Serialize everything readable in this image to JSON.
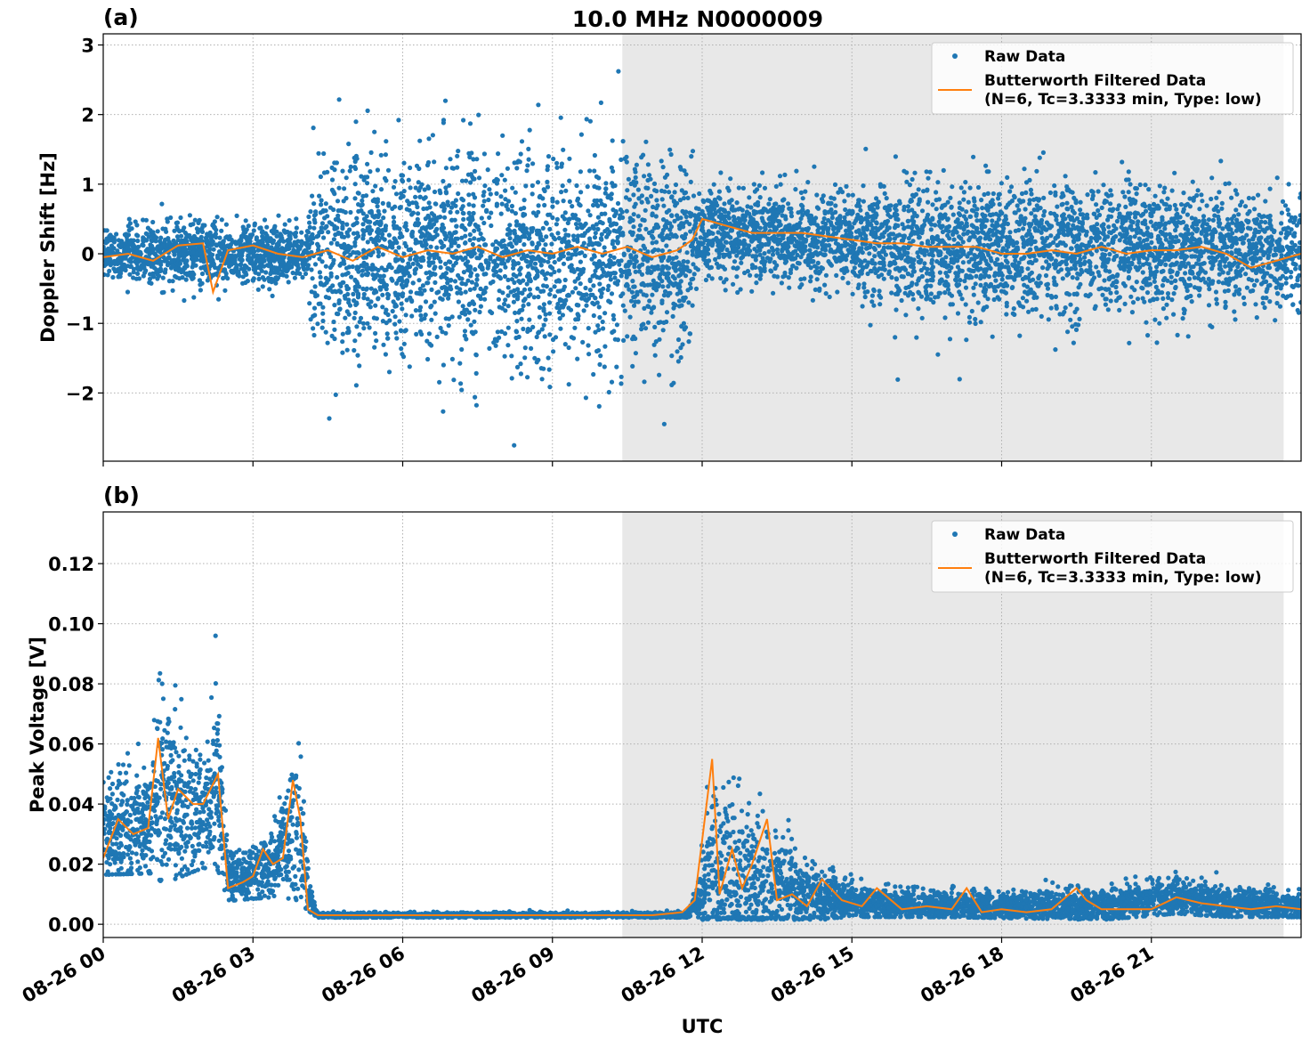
{
  "figure_title": "10.0 MHz N0000009",
  "xlabel": "UTC",
  "colors": {
    "raw": "#1f77b4",
    "filtered": "#ff7f0e",
    "shade": "#e8e8e8",
    "grid": "#b0b0b0"
  },
  "legend": {
    "raw": "Raw Data",
    "filtered_line1": "Butterworth Filtered Data",
    "filtered_line2": "(N=6, Tc=3.3333 min, Type: low)"
  },
  "chart_data": [
    {
      "type": "scatter+line",
      "panel_label": "(a)",
      "ylabel": "Doppler Shift [Hz]",
      "xlim_hours": [
        0,
        24
      ],
      "x_ticks": [
        "08-26 00",
        "08-26 03",
        "08-26 06",
        "08-26 09",
        "08-26 12",
        "08-26 15",
        "08-26 18",
        "08-26 21"
      ],
      "x_tick_hours": [
        0,
        3,
        6,
        9,
        12,
        15,
        18,
        21
      ],
      "ylim": [
        -2.98,
        3.16
      ],
      "y_ticks": [
        -2,
        -1,
        0,
        1,
        2,
        3
      ],
      "y_tick_labels": [
        "−2",
        "−1",
        "0",
        "1",
        "2",
        "3"
      ],
      "grid": true,
      "legend_position": "upper right",
      "shaded_hours": [
        10.4,
        23.65
      ],
      "filtered": {
        "x_hours": [
          0,
          0.5,
          1,
          1.5,
          2,
          2.2,
          2.5,
          3,
          3.5,
          4,
          4.5,
          5,
          5.5,
          6,
          6.5,
          7,
          7.5,
          8,
          8.5,
          9,
          9.5,
          10,
          10.5,
          11,
          11.5,
          11.8,
          12,
          12.5,
          13,
          13.5,
          14,
          14.5,
          15,
          15.5,
          16,
          16.5,
          17,
          17.5,
          18,
          18.5,
          19,
          19.5,
          20,
          20.5,
          21,
          21.5,
          22,
          22.5,
          23,
          23.5,
          24
        ],
        "y": [
          -0.05,
          0.0,
          -0.1,
          0.12,
          0.15,
          -0.55,
          0.05,
          0.12,
          0.0,
          -0.05,
          0.05,
          -0.1,
          0.1,
          -0.05,
          0.05,
          0.0,
          0.1,
          -0.05,
          0.05,
          0.0,
          0.1,
          0.0,
          0.1,
          -0.05,
          0.05,
          0.2,
          0.5,
          0.4,
          0.3,
          0.3,
          0.3,
          0.25,
          0.2,
          0.15,
          0.15,
          0.1,
          0.1,
          0.1,
          0.0,
          0.0,
          0.05,
          0.0,
          0.1,
          0.0,
          0.05,
          0.05,
          0.1,
          0.0,
          -0.2,
          -0.1,
          0.0
        ]
      },
      "raw_envelope": {
        "x_hours": [
          0,
          2,
          4.1,
          4.15,
          8,
          11.8,
          11.85,
          15,
          16,
          20,
          22,
          24
        ],
        "center": [
          0,
          0,
          0,
          0,
          0,
          0,
          0.3,
          0.2,
          0.1,
          0.05,
          0.1,
          0
        ],
        "half_spread": [
          0.35,
          0.4,
          0.35,
          1.25,
          1.3,
          1.25,
          0.55,
          0.6,
          0.85,
          0.85,
          0.7,
          0.7
        ]
      }
    },
    {
      "type": "scatter+line",
      "panel_label": "(b)",
      "ylabel": "Peak Voltage [V]",
      "xlim_hours": [
        0,
        24
      ],
      "x_ticks": [
        "08-26 00",
        "08-26 03",
        "08-26 06",
        "08-26 09",
        "08-26 12",
        "08-26 15",
        "08-26 18",
        "08-26 21"
      ],
      "x_tick_hours": [
        0,
        3,
        6,
        9,
        12,
        15,
        18,
        21
      ],
      "ylim": [
        -0.0044,
        0.1372
      ],
      "y_ticks": [
        0,
        0.02,
        0.04,
        0.06,
        0.08,
        0.1,
        0.12
      ],
      "y_tick_labels": [
        "0.00",
        "0.02",
        "0.04",
        "0.06",
        "0.08",
        "0.10",
        "0.12"
      ],
      "grid": true,
      "legend_position": "upper right",
      "shaded_hours": [
        10.4,
        23.65
      ],
      "filtered": {
        "x_hours": [
          0,
          0.3,
          0.6,
          0.9,
          1.1,
          1.3,
          1.5,
          1.8,
          2.0,
          2.3,
          2.5,
          2.8,
          3.0,
          3.2,
          3.4,
          3.6,
          3.8,
          3.95,
          4.1,
          4.3,
          5,
          6,
          7,
          8,
          9,
          10,
          11,
          11.6,
          11.85,
          12.0,
          12.2,
          12.35,
          12.6,
          12.8,
          13.0,
          13.3,
          13.5,
          13.8,
          14.1,
          14.4,
          14.8,
          15.2,
          15.5,
          16,
          16.5,
          17,
          17.3,
          17.6,
          18,
          18.5,
          19,
          19.5,
          19.7,
          20,
          20.5,
          21,
          21.5,
          22,
          22.5,
          23,
          23.5,
          24
        ],
        "y": [
          0.022,
          0.035,
          0.03,
          0.032,
          0.062,
          0.035,
          0.045,
          0.04,
          0.04,
          0.05,
          0.012,
          0.014,
          0.016,
          0.025,
          0.02,
          0.022,
          0.048,
          0.035,
          0.005,
          0.003,
          0.003,
          0.003,
          0.003,
          0.003,
          0.003,
          0.003,
          0.003,
          0.004,
          0.008,
          0.028,
          0.055,
          0.01,
          0.025,
          0.012,
          0.02,
          0.035,
          0.008,
          0.01,
          0.006,
          0.015,
          0.008,
          0.006,
          0.012,
          0.005,
          0.006,
          0.005,
          0.012,
          0.004,
          0.005,
          0.004,
          0.005,
          0.012,
          0.008,
          0.005,
          0.005,
          0.005,
          0.009,
          0.007,
          0.006,
          0.005,
          0.006,
          0.005
        ]
      },
      "raw_envelope": {
        "x_hours": [
          0,
          1,
          1.2,
          2,
          2.3,
          2.5,
          3.5,
          3.9,
          4.1,
          4.3,
          11.7,
          11.9,
          12.2,
          13.3,
          14.2,
          15,
          17,
          20,
          21.5,
          22.5,
          24
        ],
        "center": [
          0.03,
          0.035,
          0.045,
          0.035,
          0.045,
          0.015,
          0.02,
          0.035,
          0.01,
          0.003,
          0.003,
          0.008,
          0.015,
          0.012,
          0.01,
          0.007,
          0.006,
          0.006,
          0.009,
          0.007,
          0.006
        ],
        "half_spread": [
          0.015,
          0.02,
          0.035,
          0.018,
          0.03,
          0.008,
          0.012,
          0.03,
          0.006,
          0.0008,
          0.0008,
          0.005,
          0.03,
          0.02,
          0.01,
          0.005,
          0.004,
          0.005,
          0.006,
          0.005,
          0.004
        ]
      }
    }
  ]
}
